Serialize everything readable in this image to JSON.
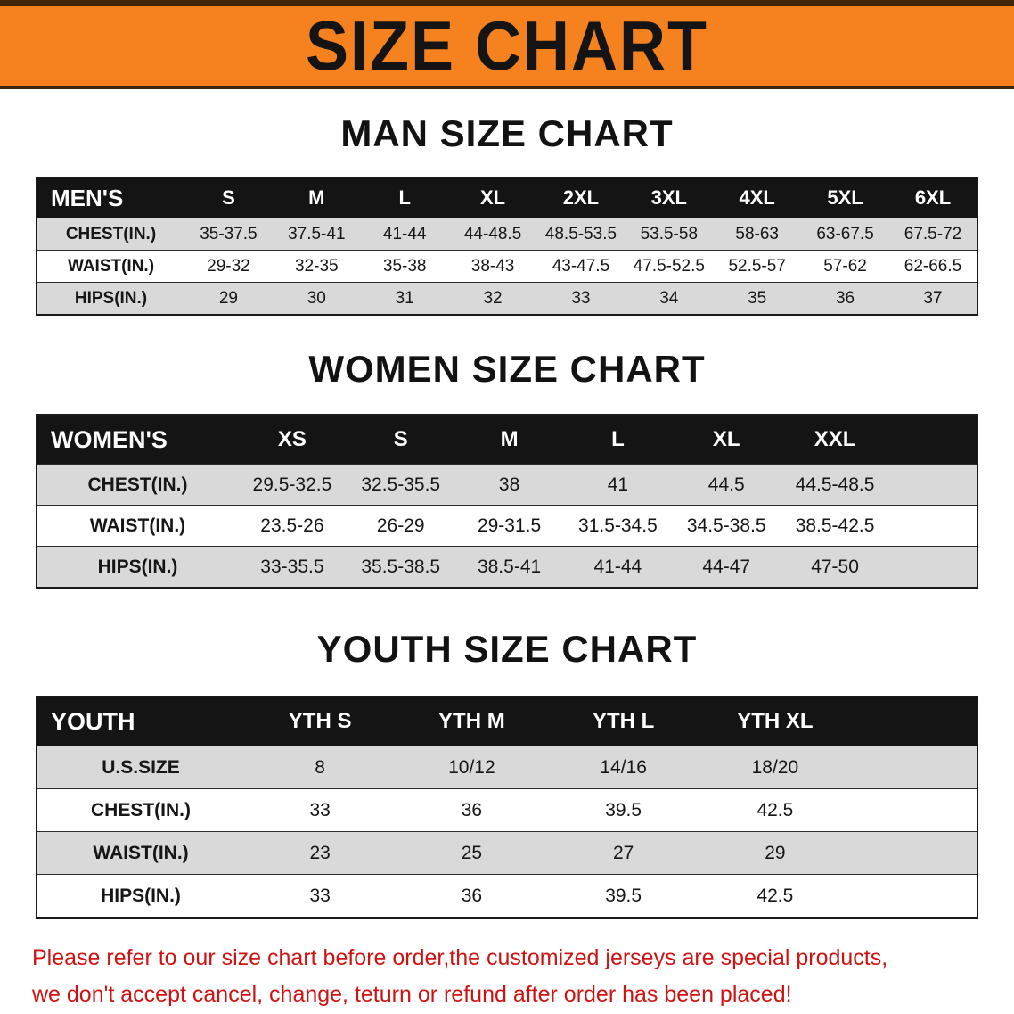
{
  "banner": {
    "title": "SIZE CHART"
  },
  "sections": [
    {
      "id": "men",
      "heading": "MAN SIZE CHART",
      "table": {
        "header": [
          "MEN'S",
          "S",
          "M",
          "L",
          "XL",
          "2XL",
          "3XL",
          "4XL",
          "5XL",
          "6XL"
        ],
        "rows": [
          [
            "CHEST(IN.)",
            "35-37.5",
            "37.5-41",
            "41-44",
            "44-48.5",
            "48.5-53.5",
            "53.5-58",
            "58-63",
            "63-67.5",
            "67.5-72"
          ],
          [
            "WAIST(IN.)",
            "29-32",
            "32-35",
            "35-38",
            "38-43",
            "43-47.5",
            "47.5-52.5",
            "52.5-57",
            "57-62",
            "62-66.5"
          ],
          [
            "HIPS(IN.)",
            "29",
            "30",
            "31",
            "32",
            "33",
            "34",
            "35",
            "36",
            "37"
          ]
        ]
      }
    },
    {
      "id": "women",
      "heading": "WOMEN SIZE CHART",
      "table": {
        "header": [
          "WOMEN'S",
          "XS",
          "S",
          "M",
          "L",
          "XL",
          "XXL"
        ],
        "rows": [
          [
            "CHEST(IN.)",
            "29.5-32.5",
            "32.5-35.5",
            "38",
            "41",
            "44.5",
            "44.5-48.5"
          ],
          [
            "WAIST(IN.)",
            "23.5-26",
            "26-29",
            "29-31.5",
            "31.5-34.5",
            "34.5-38.5",
            "38.5-42.5"
          ],
          [
            "HIPS(IN.)",
            "33-35.5",
            "35.5-38.5",
            "38.5-41",
            "41-44",
            "44-47",
            "47-50"
          ]
        ]
      }
    },
    {
      "id": "youth",
      "heading": "YOUTH SIZE CHART",
      "table": {
        "header": [
          "YOUTH",
          "YTH S",
          "YTH M",
          "YTH L",
          "YTH XL"
        ],
        "rows": [
          [
            "U.S.SIZE",
            "8",
            "10/12",
            "14/16",
            "18/20"
          ],
          [
            "CHEST(IN.)",
            "33",
            "36",
            "39.5",
            "42.5"
          ],
          [
            "WAIST(IN.)",
            "23",
            "25",
            "27",
            "29"
          ],
          [
            "HIPS(IN.)",
            "33",
            "36",
            "39.5",
            "42.5"
          ]
        ]
      }
    }
  ],
  "notice": {
    "line1": "Please refer to our size chart before order,the customized jerseys are special products,",
    "line2": "we don't accept cancel, change, teturn or refund after order has been placed!"
  },
  "colors": {
    "banner_bg": "#F5821F",
    "banner_border": "#402507",
    "table_header_bg": "#141414",
    "row_alt_bg": "#D9D9D9",
    "notice_text": "#CF1313"
  }
}
